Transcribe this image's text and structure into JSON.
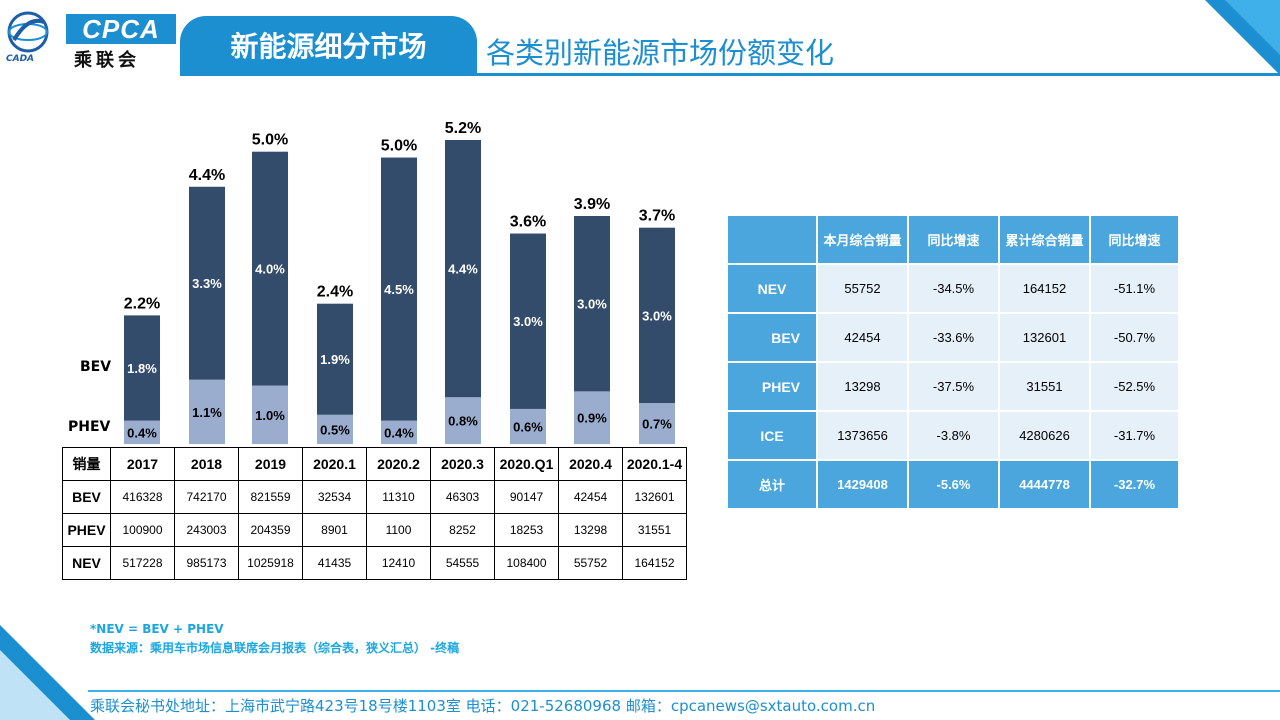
{
  "header": {
    "logo_text": "CPCA",
    "logo_cn": "乘联会",
    "logo_sub": "CADA",
    "title": "新能源细分市场",
    "subtitle": "各类别新能源市场份额变化"
  },
  "chart_data": {
    "type": "bar",
    "stacked": true,
    "categories": [
      "2017",
      "2018",
      "2019",
      "2020.1",
      "2020.2",
      "2020.3",
      "2020.Q1",
      "2020.4",
      "2020.1-4"
    ],
    "series": [
      {
        "name": "PHEV",
        "values": [
          0.4,
          1.1,
          1.0,
          0.5,
          0.4,
          0.8,
          0.6,
          0.9,
          0.7
        ],
        "labels": [
          "0.4%",
          "1.1%",
          "1.0%",
          "0.5%",
          "0.4%",
          "0.8%",
          "0.6%",
          "0.9%",
          "0.7%"
        ],
        "color": "#9aadcf"
      },
      {
        "name": "BEV",
        "values": [
          1.8,
          3.3,
          4.0,
          1.9,
          4.5,
          4.4,
          3.0,
          3.0,
          3.0
        ],
        "labels": [
          "1.8%",
          "3.3%",
          "4.0%",
          "1.9%",
          "4.5%",
          "4.4%",
          "3.0%",
          "3.0%",
          "3.0%"
        ],
        "color": "#344c6b"
      }
    ],
    "totals": [
      2.2,
      4.4,
      5.0,
      2.4,
      5.0,
      5.2,
      3.6,
      3.9,
      3.7
    ],
    "total_labels": [
      "2.2%",
      "4.4%",
      "5.0%",
      "2.4%",
      "5.0%",
      "5.2%",
      "3.6%",
      "3.9%",
      "3.7%"
    ],
    "ylim": [
      0,
      5.5
    ],
    "grid": false,
    "legend_labels": {
      "bev": "BEV",
      "phev": "PHEV"
    }
  },
  "sales_table": {
    "corner": "销量",
    "columns": [
      "2017",
      "2018",
      "2019",
      "2020.1",
      "2020.2",
      "2020.3",
      "2020.Q1",
      "2020.4",
      "2020.1-4"
    ],
    "rows": [
      {
        "label": "BEV",
        "values": [
          "416328",
          "742170",
          "821559",
          "32534",
          "11310",
          "46303",
          "90147",
          "42454",
          "132601"
        ]
      },
      {
        "label": "PHEV",
        "values": [
          "100900",
          "243003",
          "204359",
          "8901",
          "1100",
          "8252",
          "18253",
          "13298",
          "31551"
        ]
      },
      {
        "label": "NEV",
        "values": [
          "517228",
          "985173",
          "1025918",
          "41435",
          "12410",
          "54555",
          "108400",
          "55752",
          "164152"
        ]
      }
    ]
  },
  "summary_table": {
    "headers": [
      "",
      "本月综合销量",
      "同比增速",
      "累计综合销量",
      "同比增速"
    ],
    "rows": [
      {
        "label": "NEV",
        "values": [
          "55752",
          "-34.5%",
          "164152",
          "-51.1%"
        ]
      },
      {
        "label": "BEV",
        "values": [
          "42454",
          "-33.6%",
          "132601",
          "-50.7%"
        ]
      },
      {
        "label": "PHEV",
        "values": [
          "13298",
          "-37.5%",
          "31551",
          "-52.5%"
        ]
      },
      {
        "label": "ICE",
        "values": [
          "1373656",
          "-3.8%",
          "4280626",
          "-31.7%"
        ]
      }
    ],
    "total": {
      "label": "总计",
      "values": [
        "1429408",
        "-5.6%",
        "4444778",
        "-32.7%"
      ]
    }
  },
  "notes": {
    "formula": "*NEV = BEV + PHEV",
    "source": "数据来源：乘用车市场信息联席会月报表（综合表，狭义汇总） -终稿"
  },
  "footer": "乘联会秘书处地址：上海市武宁路423号18号楼1103室  电话：021-52680968   邮箱：cpcanews@sxtauto.com.cn"
}
